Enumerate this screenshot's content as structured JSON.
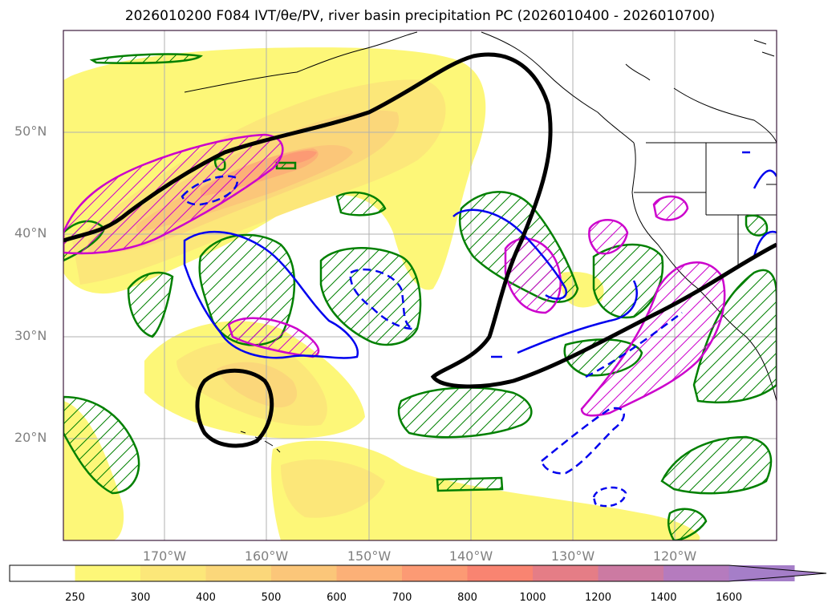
{
  "title": "2026010200 F084 IVT/θe/PV, river basin precipitation PC (2026010400 - 2026010700)",
  "map": {
    "lat_labels": [
      "50°N",
      "40°N",
      "30°N",
      "20°N"
    ],
    "lon_labels": [
      "170°W",
      "160°W",
      "150°W",
      "140°W",
      "130°W",
      "120°W"
    ],
    "lat_lines": [
      50,
      40,
      30,
      20
    ],
    "lon_lines": [
      -170,
      -160,
      -150,
      -140,
      -130,
      -120
    ],
    "extent": {
      "lon_min": -180,
      "lon_max": -110,
      "lat_min": 10,
      "lat_max": 60
    }
  },
  "colorbar": {
    "levels": [
      "250",
      "300",
      "400",
      "500",
      "600",
      "700",
      "800",
      "1000",
      "1200",
      "1400",
      "1600"
    ],
    "colors": [
      "#ffffff",
      "#fdf778",
      "#fce779",
      "#fbd77a",
      "#fbc679",
      "#fcb077",
      "#fc9a74",
      "#f98471",
      "#e57d86",
      "#cc7aa2",
      "#b57bbe",
      "#a57ec8"
    ],
    "extend": "max"
  },
  "colors": {
    "land_outline": "#000000",
    "theta_e": "#000000",
    "pv_positive": "#cc00cc",
    "pv_negative": "#0000ee",
    "precip": "#008000",
    "grid": "#b0b0b0"
  }
}
